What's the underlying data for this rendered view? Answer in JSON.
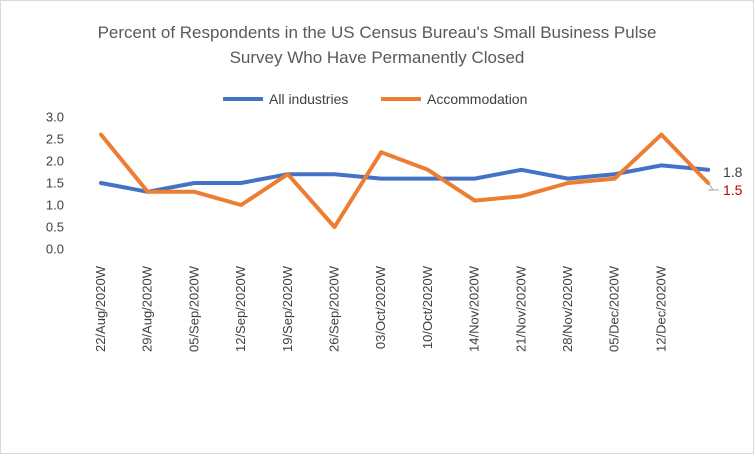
{
  "chart_data": {
    "type": "line",
    "title": "Percent of Respondents in the US Census Bureau's Small Business Pulse Survey Who Have Permanently Closed",
    "title_lines": [
      "Percent of Respondents in the US Census Bureau's Small Business Pulse",
      "Survey Who Have Permanently Closed"
    ],
    "categories": [
      "22/Aug/2020W",
      "29/Aug/2020W",
      "05/Sep/2020W",
      "12/Sep/2020W",
      "19/Sep/2020W",
      "26/Sep/2020W",
      "03/Oct/2020W",
      "10/Oct/2020W",
      "14/Nov/2020W",
      "21/Nov/2020W",
      "28/Nov/2020W",
      "05/Dec/2020W",
      "12/Dec/2020W",
      ""
    ],
    "series": [
      {
        "name": "All industries",
        "color": "#4472c4",
        "values": [
          1.5,
          1.3,
          1.5,
          1.5,
          1.7,
          1.7,
          1.6,
          1.6,
          1.6,
          1.8,
          1.6,
          1.7,
          1.9,
          1.8
        ]
      },
      {
        "name": "Accommodation",
        "color": "#ed7d31",
        "values": [
          2.6,
          1.3,
          1.3,
          1.0,
          1.7,
          0.5,
          2.2,
          1.8,
          1.1,
          1.2,
          1.5,
          1.6,
          2.6,
          1.5
        ]
      }
    ],
    "ylim": [
      0,
      3
    ],
    "yticks": [
      "0.0",
      "0.5",
      "1.0",
      "1.5",
      "2.0",
      "2.5",
      "3.0"
    ],
    "end_labels": [
      {
        "text": "1.8",
        "color": "#404040"
      },
      {
        "text": "1.5",
        "color": "#c00000"
      }
    ],
    "legend": "top",
    "grid": false
  }
}
